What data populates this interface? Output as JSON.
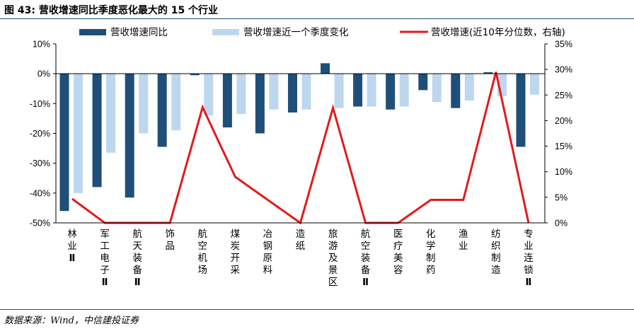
{
  "figure": {
    "title": "图 43: 营收增速同比季度恶化最大的 15 个行业",
    "source": "数据来源：Wind，中信建投证券"
  },
  "colors": {
    "series_yoy": "#1f4e79",
    "series_qoq": "#bdd7ee",
    "series_line": "#e31a1c",
    "rule": "#1f4e79",
    "axis": "#000000"
  },
  "chart_data": {
    "type": "bar",
    "categories": [
      "林业Ⅱ",
      "军工电子Ⅱ",
      "航天装备Ⅱ",
      "饰品",
      "航空机场",
      "煤炭开采",
      "冶钢原料",
      "造纸",
      "旅游及景区",
      "航空装备Ⅱ",
      "医疗美容",
      "化学制药",
      "渔业",
      "纺织制造",
      "专业连锁Ⅱ"
    ],
    "series": [
      {
        "name": "营收增速同比",
        "axis": "left",
        "kind": "bar",
        "values": [
          -46,
          -38,
          -41.5,
          -24.5,
          -0.5,
          -18,
          -20,
          -13,
          3.5,
          -11,
          -12,
          -5.5,
          -11.5,
          0.5,
          -24.5
        ]
      },
      {
        "name": "营收增速近一个季度变化",
        "axis": "left",
        "kind": "bar",
        "values": [
          -40,
          -26.5,
          -20,
          -19,
          -14,
          -13.5,
          -12,
          -12,
          -11.5,
          -11,
          -11,
          -9.5,
          -9,
          -7.5,
          -7
        ]
      },
      {
        "name": "营收增速(近10年分位数，右轴)",
        "axis": "right",
        "kind": "line",
        "values": [
          4.7,
          0,
          0,
          0,
          22.6,
          9,
          4.5,
          0,
          22.5,
          0,
          0,
          4.5,
          4.5,
          29.5,
          0
        ]
      }
    ],
    "left_axis": {
      "ylim": [
        -50,
        10
      ],
      "ticks": [
        "10%",
        "0%",
        "-10%",
        "-20%",
        "-30%",
        "-40%",
        "-50%"
      ]
    },
    "right_axis": {
      "ylim": [
        0,
        35
      ],
      "ticks": [
        "35%",
        "30%",
        "25%",
        "20%",
        "15%",
        "10%",
        "5%",
        "0%"
      ]
    },
    "grid": false,
    "legend_position": "top"
  }
}
